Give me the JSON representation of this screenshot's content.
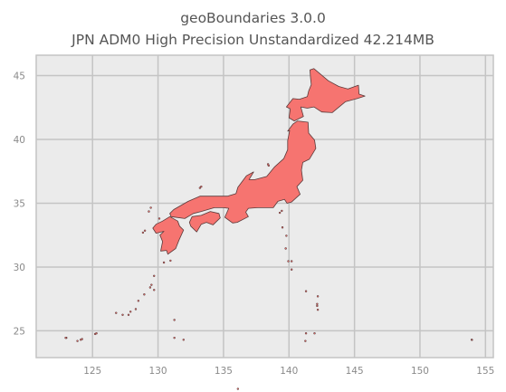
{
  "title": {
    "line1": "geoBoundaries 3.0.0",
    "line2": "JPN ADM0 High Precision Unstandardized 42.214MB"
  },
  "map": {
    "region": "Japan",
    "boundary_level": "ADM0",
    "fill_color": "#f67470",
    "edge_color": "#5a3a3a",
    "background_color": "#ebebeb",
    "grid_color": "#c4c4c4",
    "x_range": [
      120.7,
      155.6
    ],
    "y_range": [
      22.9,
      46.6
    ],
    "x_ticks": [
      125,
      130,
      135,
      140,
      145,
      150,
      155
    ],
    "y_ticks": [
      25,
      30,
      35,
      40,
      45
    ],
    "grid": true
  }
}
